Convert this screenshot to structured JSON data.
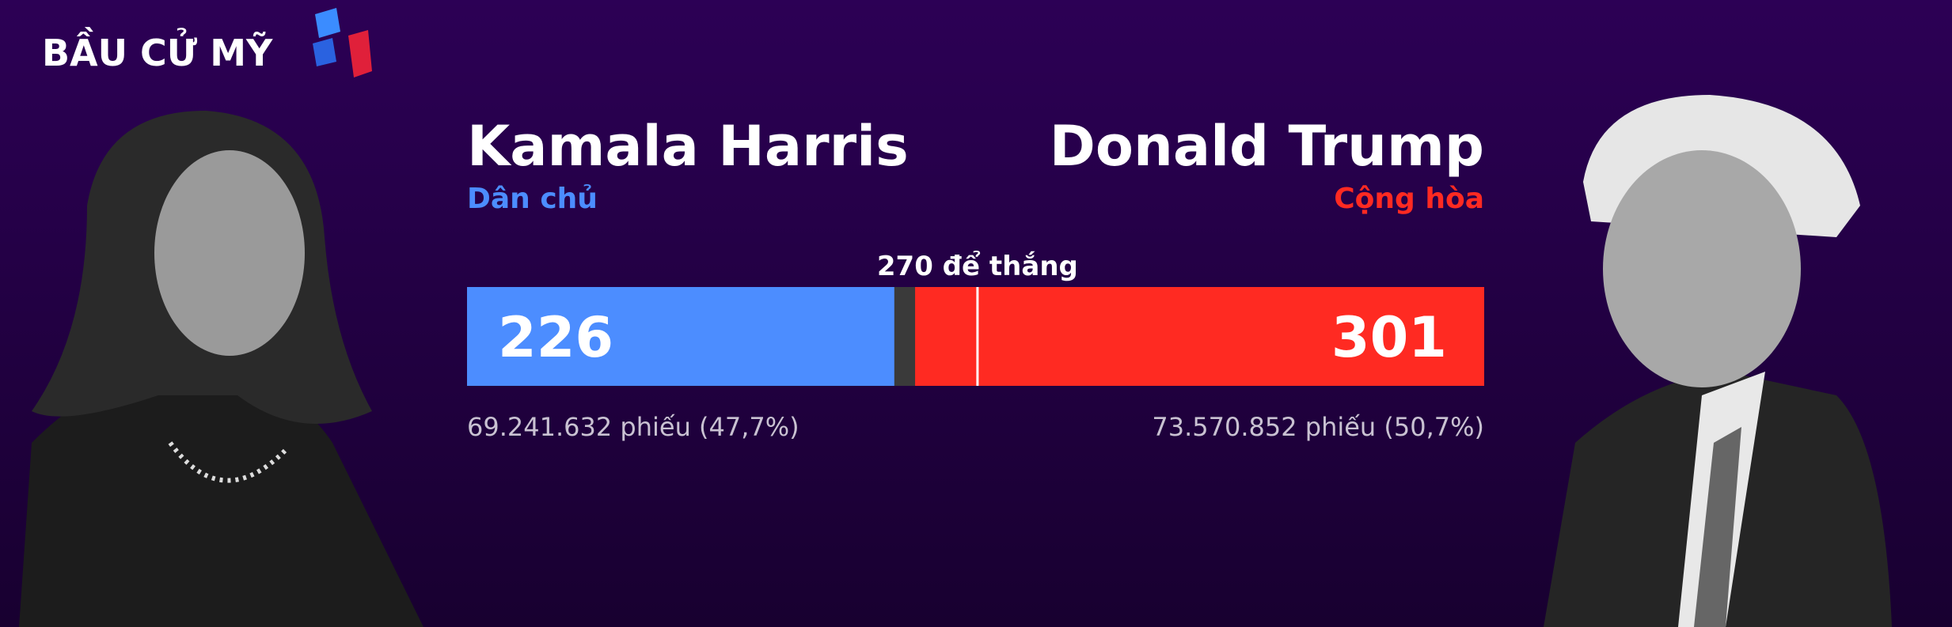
{
  "header": {
    "logo_text": "BẦU CỬ MỸ"
  },
  "chart_data": {
    "type": "stacked-bar",
    "xlim": [
      0,
      538
    ],
    "threshold": {
      "value": 270,
      "label": "270 để thắng"
    },
    "series": [
      {
        "name": "Kamala Harris",
        "party": "Dân chủ",
        "color": "#4c8dff",
        "values": [
          226
        ],
        "popular_vote": "69.241.632 phiếu (47,7%)"
      },
      {
        "name": "Donald Trump",
        "party": "Cộng hòa",
        "color": "#ff2a22",
        "values": [
          301
        ],
        "popular_vote": "73.570.852 phiếu (50,7%)"
      }
    ]
  }
}
